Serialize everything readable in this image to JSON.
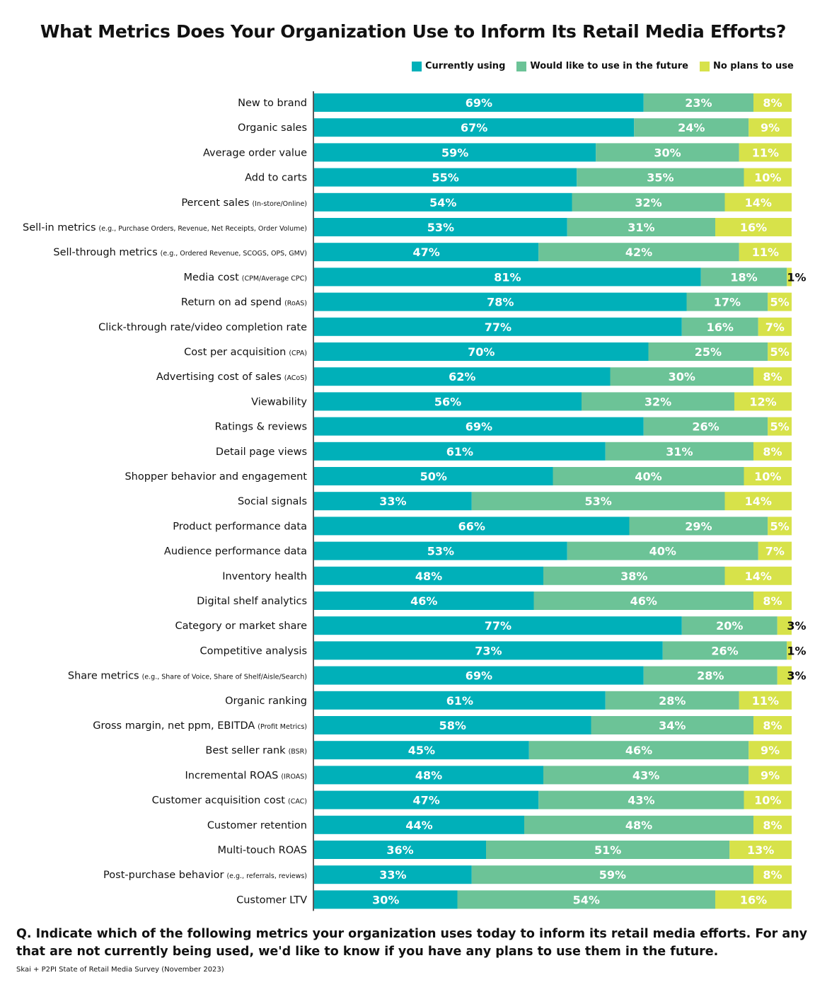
{
  "colors": {
    "currently": "#00b0b9",
    "future": "#6cc397",
    "no_plans": "#d7e24a",
    "axis": "#222222"
  },
  "footer": {
    "question": "Q. Indicate which of the following metrics your organization uses today to inform its retail media efforts. For any that are not currently being used, we'd like to know if you have any plans to use them in the future.",
    "source": "Skai + P2PI State of Retail Media Survey (November 2023)"
  },
  "chart_data": {
    "type": "bar",
    "orientation": "horizontal",
    "stacked": true,
    "title": "What Metrics Does Your Organization Use to Inform Its Retail Media Efforts?",
    "legend_placement": "top-right",
    "xlim": [
      0,
      100
    ],
    "categories": [
      {
        "main": "New to brand",
        "note": ""
      },
      {
        "main": "Organic sales",
        "note": ""
      },
      {
        "main": "Average order value",
        "note": ""
      },
      {
        "main": "Add to carts",
        "note": ""
      },
      {
        "main": "Percent sales",
        "note": "(In-store/Online)"
      },
      {
        "main": "Sell-in metrics",
        "note": "(e.g., Purchase Orders, Revenue, Net Receipts, Order Volume)"
      },
      {
        "main": "Sell-through metrics",
        "note": "(e.g., Ordered Revenue, SCOGS, OPS, GMV)"
      },
      {
        "main": "Media cost",
        "note": "(CPM/Average CPC)"
      },
      {
        "main": "Return on ad spend",
        "note": "(RoAS)"
      },
      {
        "main": "Click-through rate/video completion rate",
        "note": ""
      },
      {
        "main": "Cost per acquisition",
        "note": "(CPA)"
      },
      {
        "main": "Advertising cost of sales",
        "note": "(ACoS)"
      },
      {
        "main": "Viewability",
        "note": ""
      },
      {
        "main": "Ratings & reviews",
        "note": ""
      },
      {
        "main": "Detail page views",
        "note": ""
      },
      {
        "main": "Shopper behavior and engagement",
        "note": ""
      },
      {
        "main": "Social signals",
        "note": ""
      },
      {
        "main": "Product performance data",
        "note": ""
      },
      {
        "main": "Audience performance data",
        "note": ""
      },
      {
        "main": "Inventory health",
        "note": ""
      },
      {
        "main": "Digital shelf analytics",
        "note": ""
      },
      {
        "main": "Category or market share",
        "note": ""
      },
      {
        "main": "Competitive analysis",
        "note": ""
      },
      {
        "main": "Share metrics",
        "note": "(e.g., Share of Voice, Share of Shelf/Aisle/Search)"
      },
      {
        "main": "Organic ranking",
        "note": ""
      },
      {
        "main": "Gross margin, net ppm, EBITDA",
        "note": "(Profit Metrics)"
      },
      {
        "main": "Best seller rank",
        "note": "(BSR)"
      },
      {
        "main": "Incremental ROAS",
        "note": "(IROAS)"
      },
      {
        "main": "Customer acquisition cost",
        "note": "(CAC)"
      },
      {
        "main": "Customer retention",
        "note": ""
      },
      {
        "main": "Multi-touch ROAS",
        "note": ""
      },
      {
        "main": "Post-purchase behavior",
        "note": "(e.g., referrals, reviews)"
      },
      {
        "main": "Customer LTV",
        "note": ""
      }
    ],
    "series": [
      {
        "name": "Currently using",
        "color": "#00b0b9",
        "values": [
          69,
          67,
          59,
          55,
          54,
          53,
          47,
          81,
          78,
          77,
          70,
          62,
          56,
          69,
          61,
          50,
          33,
          66,
          53,
          48,
          46,
          77,
          73,
          69,
          61,
          58,
          45,
          48,
          47,
          44,
          36,
          33,
          30
        ]
      },
      {
        "name": "Would like to use in the future",
        "color": "#6cc397",
        "values": [
          23,
          24,
          30,
          35,
          32,
          31,
          42,
          18,
          17,
          16,
          25,
          30,
          32,
          26,
          31,
          40,
          53,
          29,
          40,
          38,
          46,
          20,
          26,
          28,
          28,
          34,
          46,
          43,
          43,
          48,
          51,
          59,
          54
        ]
      },
      {
        "name": "No plans to use",
        "color": "#d7e24a",
        "values": [
          8,
          9,
          11,
          10,
          14,
          16,
          11,
          1,
          5,
          7,
          5,
          8,
          12,
          5,
          8,
          10,
          14,
          5,
          7,
          14,
          8,
          3,
          1,
          3,
          11,
          8,
          9,
          9,
          10,
          8,
          13,
          8,
          16
        ]
      }
    ],
    "value_suffix": "%"
  }
}
